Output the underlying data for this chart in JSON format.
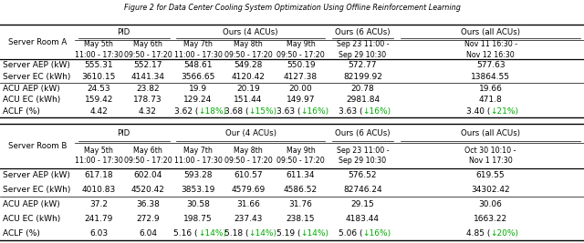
{
  "title": "Figure 2 for Data Center Cooling System Optimization Using Offline Reinforcement Learning",
  "green_color": "#00aa00",
  "bg_color": "#ffffff",
  "table_a": {
    "room_label": "Server Room A",
    "grp_headers": [
      [
        "PID",
        1,
        2
      ],
      [
        "Ours (4 ACUs)",
        3,
        5
      ],
      [
        "Ours (6 ACUs)",
        6,
        6
      ],
      [
        "Ours (all ACUs)",
        7,
        7
      ]
    ],
    "date_headers": [
      "May 5th\n11:00 - 17:30",
      "May 6th\n09:50 - 17:20",
      "May 7th\n11:00 - 17:30",
      "May 8th\n09:50 - 17:20",
      "May 9th\n09:50 - 17:20",
      "Sep 23 11:00 -\nSep 29 10:30",
      "Nov 11 16:30 -\nNov 12 16:30"
    ],
    "rows": [
      [
        "Server AEP (kW)",
        "555.31",
        "552.17",
        "548.61",
        "549.28",
        "550.19",
        "572.77",
        "577.63"
      ],
      [
        "Server EC (kWh)",
        "3610.15",
        "4141.34",
        "3566.65",
        "4120.42",
        "4127.38",
        "82199.92",
        "13864.55"
      ],
      [
        "ACU AEP (kW)",
        "24.53",
        "23.82",
        "19.9",
        "20.19",
        "20.00",
        "20.78",
        "19.66"
      ],
      [
        "ACU EC (kWh)",
        "159.42",
        "178.73",
        "129.24",
        "151.44",
        "149.97",
        "2981.84",
        "471.8"
      ],
      [
        "ACLF (%)",
        "4.42",
        "4.32",
        "3.62",
        "3.68",
        "3.63",
        "3.63",
        "3.40"
      ]
    ],
    "aclf_delta": [
      "",
      "",
      "18%",
      "15%",
      "16%",
      "16%",
      "21%"
    ],
    "separator_after": [
      1
    ]
  },
  "table_b": {
    "room_label": "Server Room B",
    "grp_headers": [
      [
        "PID",
        1,
        2
      ],
      [
        "Our (4 ACUs)",
        3,
        5
      ],
      [
        "Ours (6 ACUs)",
        6,
        6
      ],
      [
        "Ours (all ACUs)",
        7,
        7
      ]
    ],
    "date_headers": [
      "May 5th\n11:00 - 17:30",
      "May 6th\n09:50 - 17:20",
      "May 7th\n11:00 - 17:30",
      "May 8th\n09:50 - 17:20",
      "May 9th\n09:50 - 17:20",
      "Sep 23 11:00 -\nSep 29 10:30",
      "Oct 30 10:10 -\nNov 1 17:30"
    ],
    "rows": [
      [
        "Server AEP (kW)",
        "617.18",
        "602.04",
        "593.28",
        "610.57",
        "611.34",
        "576.52",
        "619.55"
      ],
      [
        "Server EC (kWh)",
        "4010.83",
        "4520.42",
        "3853.19",
        "4579.69",
        "4586.52",
        "82746.24",
        "34302.42"
      ],
      [
        "ACU AEP (kW)",
        "37.2",
        "36.38",
        "30.58",
        "31.66",
        "31.76",
        "29.15",
        "30.06"
      ],
      [
        "ACU EC (kWh)",
        "241.79",
        "272.9",
        "198.75",
        "237.43",
        "238.15",
        "4183.44",
        "1663.22"
      ],
      [
        "ACLF (%)",
        "6.03",
        "6.04",
        "5.16",
        "5.18",
        "5.19",
        "5.06",
        "4.85"
      ]
    ],
    "aclf_delta": [
      "",
      "",
      "14%",
      "14%",
      "14%",
      "16%",
      "20%"
    ],
    "separator_after": [
      1
    ]
  },
  "col_boundaries": [
    0.0,
    0.128,
    0.21,
    0.296,
    0.382,
    0.468,
    0.562,
    0.68,
    1.0
  ],
  "fs_header": 6.2,
  "fs_data": 6.5
}
